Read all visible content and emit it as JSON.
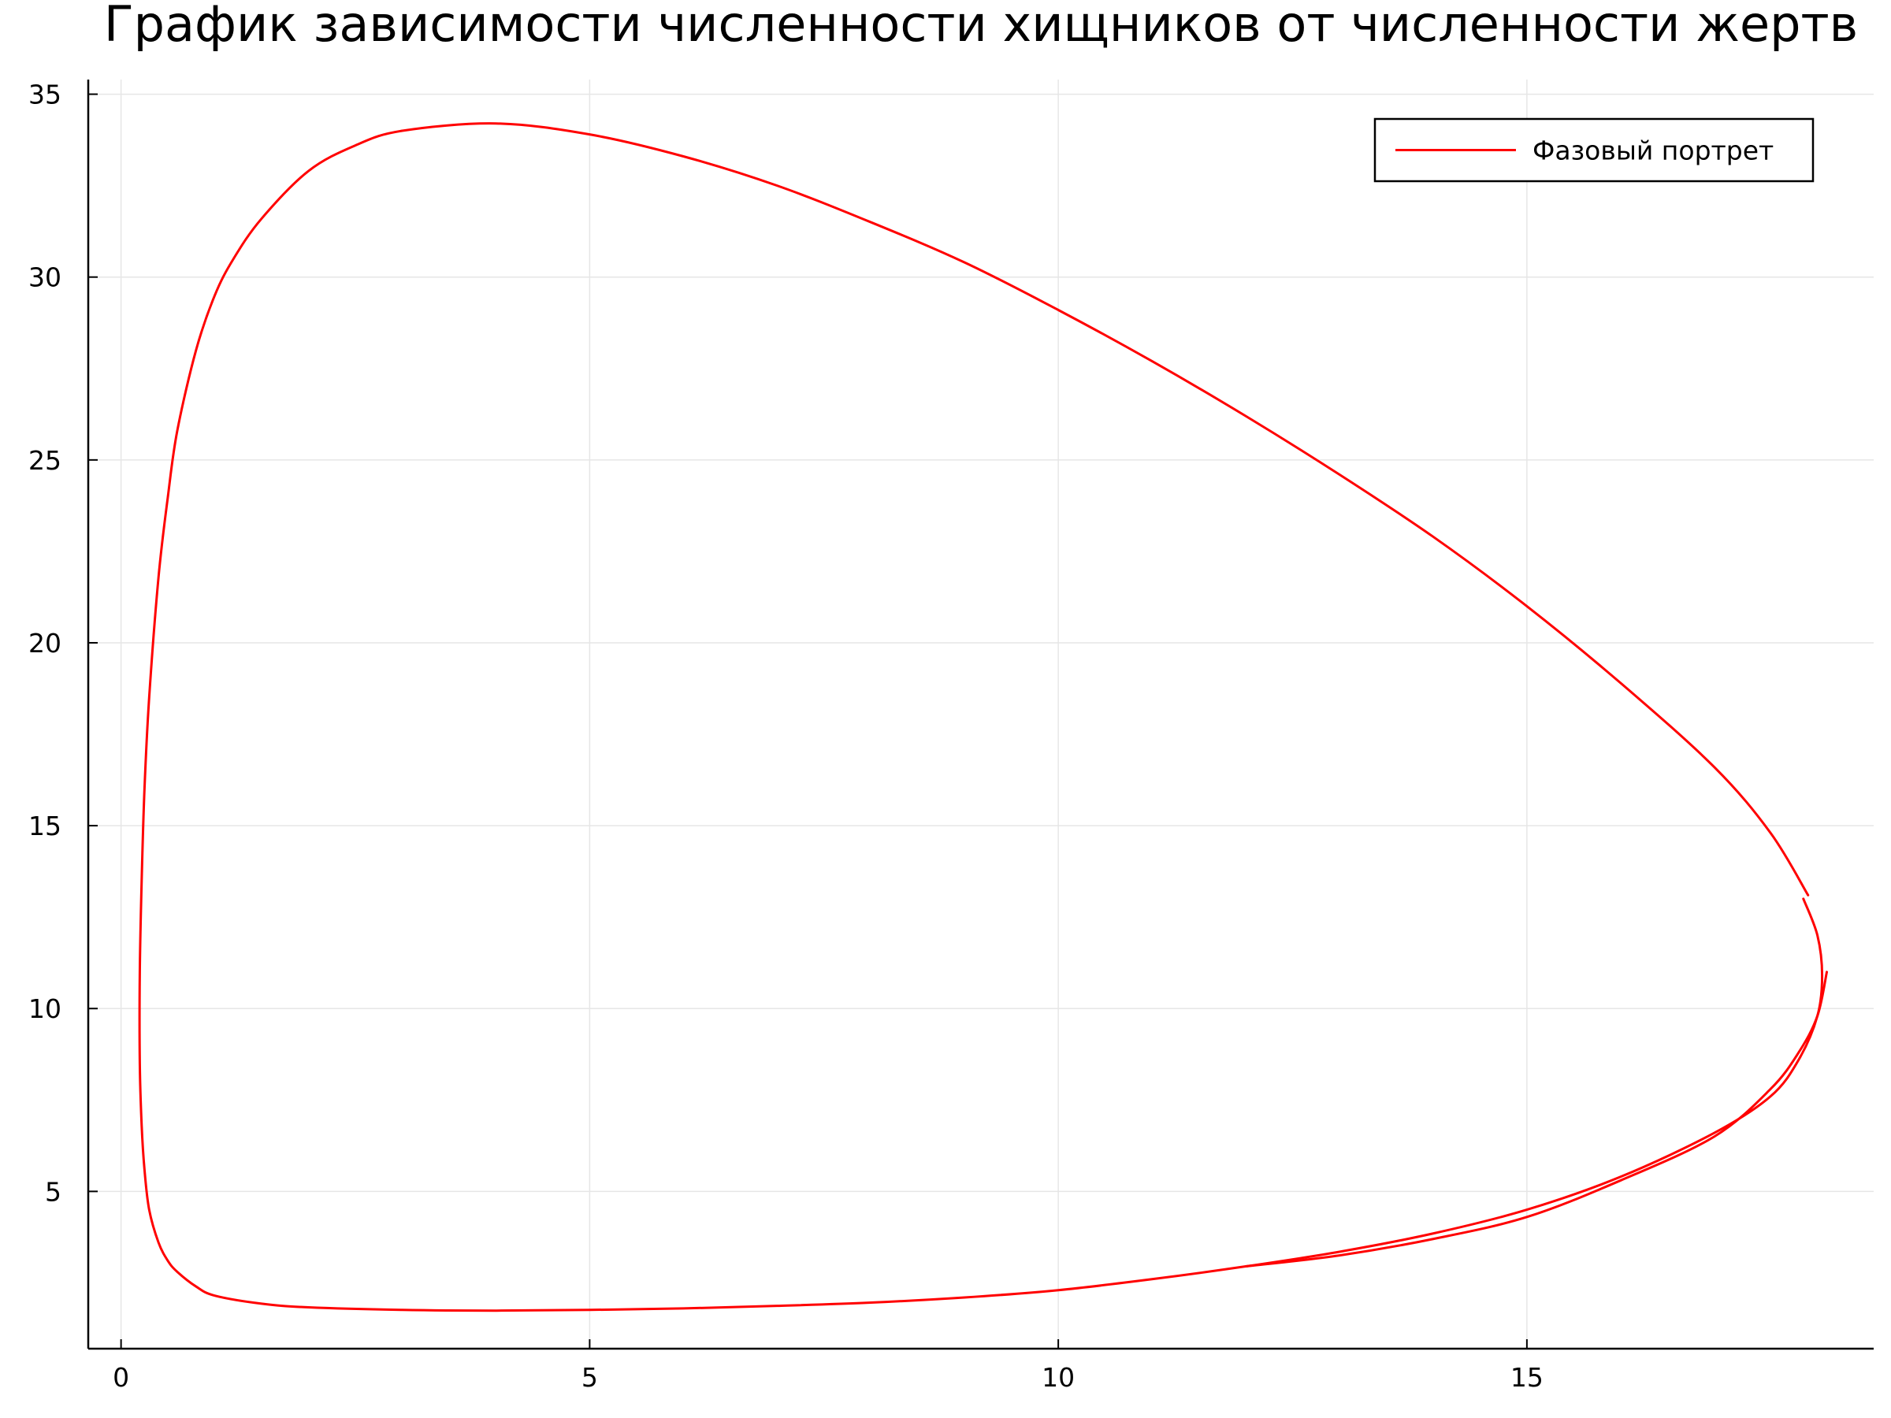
{
  "chart_data": {
    "type": "line",
    "title": "График зависимости численности хищников от численности жертв",
    "xlabel": "",
    "ylabel": "",
    "xlim": [
      -0.35,
      18.7
    ],
    "ylim": [
      0.7,
      35.4
    ],
    "xticks": [
      0,
      5,
      10,
      15
    ],
    "yticks": [
      5,
      10,
      15,
      20,
      25,
      30,
      35
    ],
    "grid": true,
    "legend_position": "top-right",
    "series": [
      {
        "name": "Фазовый портрет",
        "color": "#ff0000",
        "loops": [
          {
            "x": [
              18.0,
              17.6,
              17.0,
              16.0,
              15.0,
              14.0,
              13.0,
              12.0,
              11.0,
              10.0,
              9.0,
              8.0,
              7.0,
              6.0,
              5.0,
              4.0,
              3.0,
              2.5,
              2.0,
              1.5,
              1.2,
              1.0,
              0.8,
              0.6,
              0.5,
              0.4,
              0.3,
              0.25,
              0.22,
              0.2,
              0.2,
              0.22,
              0.25,
              0.3,
              0.4,
              0.5,
              0.6,
              0.8,
              1.0,
              1.5,
              2.0,
              3.0,
              4.0,
              5.0,
              6.0,
              7.0,
              8.0,
              9.0,
              10.0,
              11.0,
              12.0,
              13.0,
              14.0,
              15.0,
              16.0,
              17.0,
              17.6,
              17.9,
              18.1,
              18.15,
              18.1,
              17.95
            ],
            "y": [
              13.1,
              14.8,
              16.6,
              18.9,
              21.0,
              22.9,
              24.6,
              26.2,
              27.7,
              29.1,
              30.4,
              31.5,
              32.5,
              33.3,
              33.9,
              34.2,
              34.0,
              33.6,
              32.9,
              31.6,
              30.5,
              29.5,
              28.0,
              25.8,
              24.0,
              21.8,
              18.5,
              16.0,
              13.5,
              11.0,
              8.5,
              6.8,
              5.6,
              4.5,
              3.6,
              3.1,
              2.8,
              2.4,
              2.15,
              1.93,
              1.83,
              1.76,
              1.74,
              1.76,
              1.8,
              1.87,
              1.96,
              2.1,
              2.3,
              2.6,
              2.95,
              3.35,
              3.85,
              4.5,
              5.4,
              6.6,
              7.6,
              8.6,
              9.8,
              10.9,
              12.0,
              13.0
            ]
          },
          {
            "x": [
              18.2,
              18.1,
              17.9,
              17.6,
              17.0,
              16.0,
              15.0,
              14.0,
              13.0,
              12.0
            ],
            "y": [
              11.0,
              9.8,
              8.8,
              7.8,
              6.5,
              5.3,
              4.3,
              3.7,
              3.25,
              2.95
            ]
          }
        ]
      }
    ]
  }
}
